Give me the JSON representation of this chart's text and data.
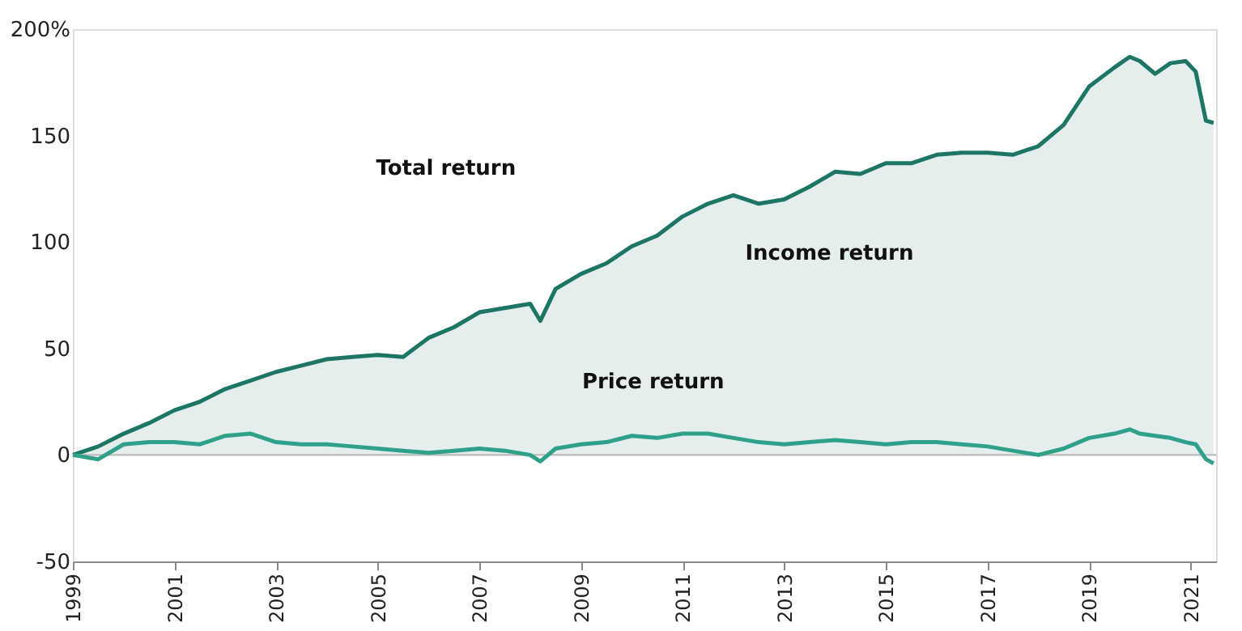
{
  "chart_data": {
    "type": "line",
    "x": [
      1999,
      1999.5,
      2000,
      2000.5,
      2001,
      2001.5,
      2002,
      2002.5,
      2003,
      2003.5,
      2004,
      2004.5,
      2005,
      2005.5,
      2006,
      2006.5,
      2007,
      2007.5,
      2008,
      2008.2,
      2008.5,
      2009,
      2009.5,
      2010,
      2010.5,
      2011,
      2011.5,
      2012,
      2012.5,
      2013,
      2013.5,
      2014,
      2014.5,
      2015,
      2015.5,
      2016,
      2016.5,
      2017,
      2017.5,
      2018,
      2018.5,
      2019,
      2019.5,
      2019.8,
      2020,
      2020.3,
      2020.6,
      2020.9,
      2021.1,
      2021.3,
      2021.45
    ],
    "series": [
      {
        "type": "area",
        "color": "#1d7566",
        "values": [
          0,
          4,
          10,
          15,
          21,
          25,
          31,
          35,
          39,
          42,
          45,
          46,
          47,
          46,
          55,
          60,
          67,
          69,
          71,
          63,
          78,
          85,
          90,
          98,
          103,
          112,
          118,
          122,
          118,
          120,
          126,
          133,
          132,
          137,
          137,
          141,
          142,
          142,
          141,
          145,
          155,
          173,
          182,
          187,
          185,
          179,
          184,
          185,
          180,
          157,
          156
        ]
      },
      {
        "color": "#2fa08a",
        "values": [
          0,
          -2,
          5,
          6,
          6,
          5,
          9,
          10,
          6,
          5,
          5,
          4,
          3,
          2,
          1,
          2,
          3,
          2,
          0,
          -3,
          3,
          5,
          6,
          9,
          8,
          10,
          10,
          8,
          6,
          5,
          6,
          7,
          6,
          5,
          6,
          6,
          5,
          4,
          2,
          0,
          3,
          8,
          10,
          12,
          10,
          9,
          8,
          6,
          5,
          -2,
          -4
        ]
      }
    ],
    "xlim": [
      1999,
      2021.5
    ],
    "xticks": [
      1999,
      2001,
      2003,
      2005,
      2007,
      2009,
      2011,
      2013,
      2015,
      2017,
      2019,
      2021
    ],
    "ylim": [
      -50,
      200
    ],
    "yticks": [
      -50,
      0,
      50,
      100,
      150,
      {
        "value": 200,
        "label": "200%"
      }
    ],
    "ref_lines": [
      {
        "axis": "y",
        "value": 0,
        "color": "#bbbbbb"
      }
    ],
    "annotations": [
      "Total return",
      "Income return",
      "Price return"
    ],
    "grid": false,
    "line_style": "solid",
    "marker": "none"
  }
}
